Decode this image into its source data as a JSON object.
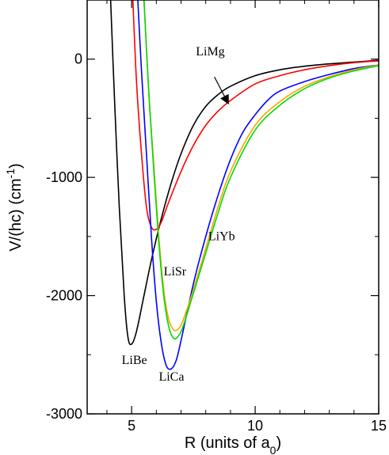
{
  "chart_data": {
    "type": "line",
    "xlabel": "R (units of a",
    "xlabel_sub": "0",
    "xlabel_end": ")",
    "ylabel": "V/(hc) (cm",
    "ylabel_sup": "-1",
    "ylabel_end": ")",
    "xlim": [
      3.2,
      15
    ],
    "ylim": [
      -3000,
      500
    ],
    "xticks": [
      5,
      10,
      15
    ],
    "yticks": [
      0,
      -1000,
      -2000,
      -3000
    ],
    "grid": false,
    "series": [
      {
        "name": "LiBe",
        "color": "#000000",
        "x": [
          4.15,
          4.3,
          4.5,
          4.7,
          4.85,
          5.0,
          5.2,
          5.5,
          5.8,
          6.2,
          6.6,
          7.0,
          7.5,
          8.0,
          8.5,
          9.0,
          10.0,
          11.0,
          12.0,
          13.0,
          14.0,
          15.0
        ],
        "y": [
          500,
          -300,
          -1250,
          -2000,
          -2350,
          -2410,
          -2300,
          -2000,
          -1700,
          -1350,
          -1050,
          -800,
          -560,
          -400,
          -300,
          -230,
          -140,
          -90,
          -60,
          -40,
          -25,
          -10
        ]
      },
      {
        "name": "LiMg",
        "color": "#ff0000",
        "x": [
          5.05,
          5.2,
          5.4,
          5.6,
          5.8,
          6.0,
          6.2,
          6.5,
          7.0,
          7.5,
          8.0,
          8.5,
          9.0,
          10.0,
          11.0,
          12.0,
          13.0,
          14.0,
          15.0
        ],
        "y": [
          500,
          -200,
          -800,
          -1250,
          -1420,
          -1440,
          -1380,
          -1210,
          -950,
          -730,
          -560,
          -440,
          -350,
          -210,
          -140,
          -90,
          -55,
          -30,
          -15
        ]
      },
      {
        "name": "LiCa",
        "color": "#0000ff",
        "x": [
          5.25,
          5.4,
          5.6,
          5.8,
          6.0,
          6.2,
          6.4,
          6.6,
          6.8,
          7.0,
          7.5,
          8.0,
          8.5,
          9.0,
          9.5,
          10.0,
          10.5,
          11.0,
          12.0,
          13.0,
          14.0,
          15.0
        ],
        "y": [
          500,
          -100,
          -800,
          -1500,
          -2050,
          -2400,
          -2590,
          -2620,
          -2550,
          -2380,
          -1900,
          -1500,
          -1150,
          -850,
          -620,
          -470,
          -350,
          -270,
          -190,
          -130,
          -80,
          -50
        ]
      },
      {
        "name": "LiSr",
        "color": "#ffa500",
        "x": [
          5.5,
          5.7,
          5.9,
          6.1,
          6.3,
          6.5,
          6.7,
          6.9,
          7.1,
          7.5,
          8.0,
          8.5,
          9.0,
          10.0,
          11.0,
          12.0,
          13.0,
          14.0,
          15.0
        ],
        "y": [
          500,
          -300,
          -900,
          -1500,
          -1950,
          -2200,
          -2290,
          -2280,
          -2200,
          -1950,
          -1600,
          -1250,
          -950,
          -560,
          -360,
          -230,
          -150,
          -90,
          -50
        ]
      },
      {
        "name": "LiYb",
        "color": "#00dd00",
        "x": [
          5.5,
          5.7,
          5.9,
          6.1,
          6.3,
          6.5,
          6.7,
          6.9,
          7.1,
          7.5,
          8.0,
          8.5,
          9.0,
          10.0,
          11.0,
          12.0,
          13.0,
          14.0,
          15.0
        ],
        "y": [
          500,
          -300,
          -950,
          -1550,
          -2000,
          -2260,
          -2360,
          -2340,
          -2250,
          -1980,
          -1640,
          -1300,
          -1000,
          -600,
          -390,
          -250,
          -160,
          -100,
          -55
        ]
      }
    ],
    "annotations": [
      {
        "text": "LiBe",
        "x": 4.6,
        "y": -2580
      },
      {
        "text": "LiCa",
        "x": 6.1,
        "y": -2720
      },
      {
        "text": "LiSr",
        "x": 6.3,
        "y": -1830
      },
      {
        "text": "LiYb",
        "x": 8.1,
        "y": -1530
      },
      {
        "text": "LiMg",
        "x": 7.6,
        "y": 30
      }
    ],
    "arrow": {
      "from": [
        8.35,
        -150
      ],
      "to": [
        8.9,
        -370
      ]
    }
  }
}
